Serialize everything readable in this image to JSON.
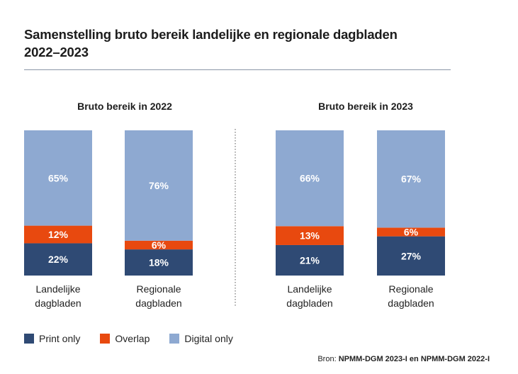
{
  "title_lines": [
    "Samenstelling bruto bereik  landelijke en regionale dagbladen",
    "2022–2023"
  ],
  "source": {
    "prefix": "Bron: ",
    "text": "NPMM-DGM 2023-I en NPMM-DGM 2022-I"
  },
  "colors": {
    "print": "#2f4a74",
    "overlap": "#e8490f",
    "digital": "#8ea9d1",
    "value_label": "#ffffff"
  },
  "legend": [
    {
      "name": "Print only",
      "color": "#2f4a74"
    },
    {
      "name": "Overlap",
      "color": "#e8490f"
    },
    {
      "name": "Digital only",
      "color": "#8ea9d1"
    }
  ],
  "chart_data": [
    {
      "type": "bar",
      "stacked": true,
      "title": "Bruto bereik in 2022",
      "categories": [
        "Landelijke dagbladen",
        "Regionale dagbladen"
      ],
      "series": [
        {
          "name": "Print only",
          "values": [
            22,
            18
          ]
        },
        {
          "name": "Overlap",
          "values": [
            12,
            6
          ]
        },
        {
          "name": "Digital only",
          "values": [
            65,
            76
          ]
        }
      ],
      "unit": "%",
      "legend_position": "bottom-left",
      "grid": false
    },
    {
      "type": "bar",
      "stacked": true,
      "title": "Bruto bereik in 2023",
      "categories": [
        "Landelijke dagbladen",
        "Regionale dagbladen"
      ],
      "series": [
        {
          "name": "Print only",
          "values": [
            21,
            27
          ]
        },
        {
          "name": "Overlap",
          "values": [
            13,
            6
          ]
        },
        {
          "name": "Digital only",
          "values": [
            66,
            67
          ]
        }
      ],
      "unit": "%",
      "legend_position": "bottom-left",
      "grid": false
    }
  ]
}
